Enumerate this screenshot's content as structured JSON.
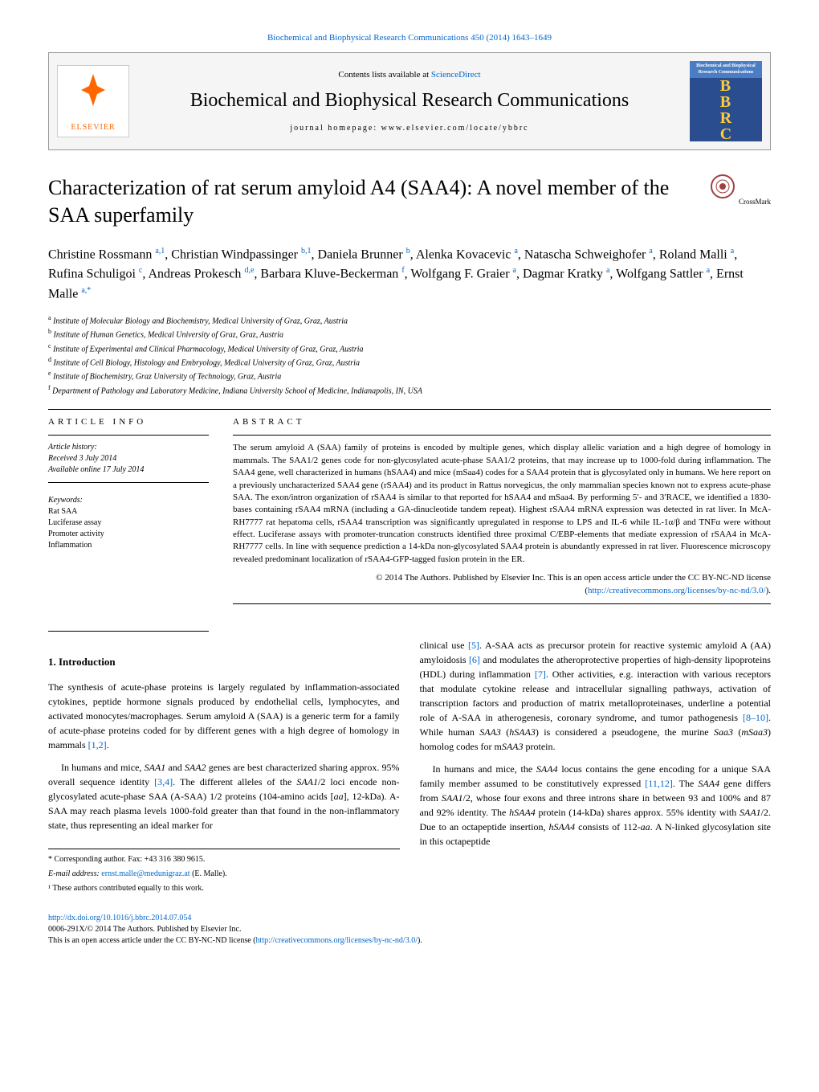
{
  "top_link": "Biochemical and Biophysical Research Communications 450 (2014) 1643–1649",
  "header": {
    "contents_line_prefix": "Contents lists available at ",
    "sd_text": "ScienceDirect",
    "journal_name": "Biochemical and Biophysical Research Communications",
    "homepage_prefix": "journal homepage: ",
    "homepage_url": "www.elsevier.com/locate/ybbrc",
    "elsevier": "ELSEVIER",
    "bbrc_small": "Biochemical and Biophysical Research Communications"
  },
  "title": "Characterization of rat serum amyloid A4 (SAA4): A novel member of the SAA superfamily",
  "crossmark_label": "CrossMark",
  "authors_html": "Christine Rossmann <sup class='sup sup-link'>a,1</sup>, Christian Windpassinger <sup class='sup sup-link'>b,1</sup>, Daniela Brunner <sup class='sup sup-link'>b</sup>, Alenka Kovacevic <sup class='sup sup-link'>a</sup>, Natascha Schweighofer <sup class='sup sup-link'>a</sup>, Roland Malli <sup class='sup sup-link'>a</sup>, Rufina Schuligoi <sup class='sup sup-link'>c</sup>, Andreas Prokesch <sup class='sup sup-link'>d,e</sup>, Barbara Kluve-Beckerman <sup class='sup sup-link'>f</sup>, Wolfgang F. Graier <sup class='sup sup-link'>a</sup>, Dagmar Kratky <sup class='sup sup-link'>a</sup>, Wolfgang Sattler <sup class='sup sup-link'>a</sup>, Ernst Malle <sup class='sup sup-link'>a,*</sup>",
  "affiliations": [
    {
      "sup": "a",
      "text": "Institute of Molecular Biology and Biochemistry, Medical University of Graz, Graz, Austria"
    },
    {
      "sup": "b",
      "text": "Institute of Human Genetics, Medical University of Graz, Graz, Austria"
    },
    {
      "sup": "c",
      "text": "Institute of Experimental and Clinical Pharmacology, Medical University of Graz, Graz, Austria"
    },
    {
      "sup": "d",
      "text": "Institute of Cell Biology, Histology and Embryology, Medical University of Graz, Graz, Austria"
    },
    {
      "sup": "e",
      "text": "Institute of Biochemistry, Graz University of Technology, Graz, Austria"
    },
    {
      "sup": "f",
      "text": "Department of Pathology and Laboratory Medicine, Indiana University School of Medicine, Indianapolis, IN, USA"
    }
  ],
  "article_info": {
    "heading": "ARTICLE INFO",
    "history_label": "Article history:",
    "received": "Received 3 July 2014",
    "available": "Available online 17 July 2014",
    "keywords_label": "Keywords:",
    "keywords": [
      "Rat SAA",
      "Luciferase assay",
      "Promoter activity",
      "Inflammation"
    ]
  },
  "abstract": {
    "heading": "ABSTRACT",
    "text": "The serum amyloid A (SAA) family of proteins is encoded by multiple genes, which display allelic variation and a high degree of homology in mammals. The SAA1/2 genes code for non-glycosylated acute-phase SAA1/2 proteins, that may increase up to 1000-fold during inflammation. The SAA4 gene, well characterized in humans (hSAA4) and mice (mSaa4) codes for a SAA4 protein that is glycosylated only in humans. We here report on a previously uncharacterized SAA4 gene (rSAA4) and its product in Rattus norvegicus, the only mammalian species known not to express acute-phase SAA. The exon/intron organization of rSAA4 is similar to that reported for hSAA4 and mSaa4. By performing 5′- and 3′RACE, we identified a 1830-bases containing rSAA4 mRNA (including a GA-dinucleotide tandem repeat). Highest rSAA4 mRNA expression was detected in rat liver. In McA-RH7777 rat hepatoma cells, rSAA4 transcription was significantly upregulated in response to LPS and IL-6 while IL-1α/β and TNFα were without effect. Luciferase assays with promoter-truncation constructs identified three proximal C/EBP-elements that mediate expression of rSAA4 in McA-RH7777 cells. In line with sequence prediction a 14-kDa non-glycosylated SAA4 protein is abundantly expressed in rat liver. Fluorescence microscopy revealed predominant localization of rSAA4-GFP-tagged fusion protein in the ER.",
    "copyright": "© 2014 The Authors. Published by Elsevier Inc. This is an open access article under the CC BY-NC-ND license (",
    "license_url": "http://creativecommons.org/licenses/by-nc-nd/3.0/",
    "license_close": ")."
  },
  "intro_heading": "1. Introduction",
  "body_left": [
    "The synthesis of acute-phase proteins is largely regulated by inflammation-associated cytokines, peptide hormone signals produced by endothelial cells, lymphocytes, and activated monocytes/macrophages. Serum amyloid A (SAA) is a generic term for a family of acute-phase proteins coded for by different genes with a high degree of homology in mammals [1,2].",
    "In humans and mice, SAA1 and SAA2 genes are best characterized sharing approx. 95% overall sequence identity [3,4]. The different alleles of the SAA1/2 loci encode non-glycosylated acute-phase SAA (A-SAA) 1/2 proteins (104-amino acids [aa], 12-kDa). A-SAA may reach plasma levels 1000-fold greater than that found in the non-inflammatory state, thus representing an ideal marker for"
  ],
  "body_right": [
    "clinical use [5]. A-SAA acts as precursor protein for reactive systemic amyloid A (AA) amyloidosis [6] and modulates the atheroprotective properties of high-density lipoproteins (HDL) during inflammation [7]. Other activities, e.g. interaction with various receptors that modulate cytokine release and intracellular signalling pathways, activation of transcription factors and production of matrix metalloproteinases, underline a potential role of A-SAA in atherogenesis, coronary syndrome, and tumor pathogenesis [8–10]. While human SAA3 (hSAA3) is considered a pseudogene, the murine Saa3 (mSaa3) homolog codes for mSAA3 protein.",
    "In humans and mice, the SAA4 locus contains the gene encoding for a unique SAA family member assumed to be constitutively expressed [11,12]. The SAA4 gene differs from SAA1/2, whose four exons and three introns share in between 93 and 100% and 87 and 92% identity. The hSAA4 protein (14-kDa) shares approx. 55% identity with SAA1/2. Due to an octapeptide insertion, hSAA4 consists of 112-aa. A N-linked glycosylation site in this octapeptide"
  ],
  "footnotes": {
    "corresponding": "* Corresponding author. Fax: +43 316 380 9615.",
    "email_label": "E-mail address: ",
    "email": "ernst.malle@medunigraz.at",
    "email_suffix": " (E. Malle).",
    "equal": "¹ These authors contributed equally to this work."
  },
  "doi": {
    "url": "http://dx.doi.org/10.1016/j.bbrc.2014.07.054",
    "issn": "0006-291X/© 2014 The Authors. Published by Elsevier Inc.",
    "access": "This is an open access article under the CC BY-NC-ND license (",
    "license_url": "http://creativecommons.org/licenses/by-nc-nd/3.0/",
    "close": ")."
  }
}
